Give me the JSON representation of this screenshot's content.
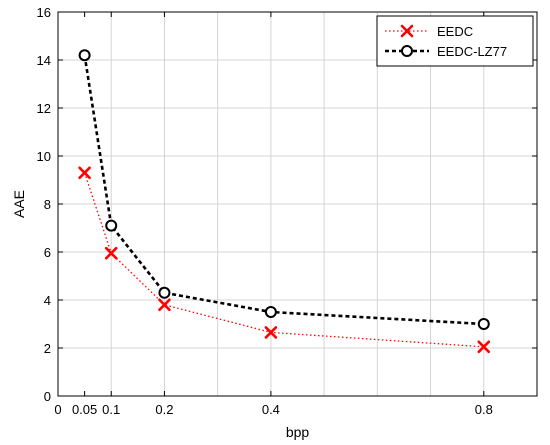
{
  "chart_data": {
    "type": "line",
    "xlabel": "bpp",
    "ylabel": "AAE",
    "xlim": [
      0,
      0.9
    ],
    "ylim": [
      0,
      16
    ],
    "xticks": [
      0,
      0.05,
      0.1,
      0.2,
      0.4,
      0.8
    ],
    "xtick_labels": [
      "0",
      "0.05",
      "0.1",
      "0.2",
      "0.4",
      "0.8"
    ],
    "xgrid": [
      0.1,
      0.2,
      0.3,
      0.4,
      0.5,
      0.6,
      0.7,
      0.8
    ],
    "yticks": [
      0,
      2,
      4,
      6,
      8,
      10,
      12,
      14,
      16
    ],
    "ytick_labels": [
      "0",
      "2",
      "4",
      "6",
      "8",
      "10",
      "12",
      "14",
      "16"
    ],
    "grid": true,
    "legend_position": "top-right",
    "series": [
      {
        "name": "EEDC",
        "color": "#ff0000",
        "line_style": "dotted",
        "marker": "x",
        "x": [
          0.05,
          0.1,
          0.2,
          0.4,
          0.8
        ],
        "y": [
          9.3,
          5.95,
          3.8,
          2.65,
          2.05
        ]
      },
      {
        "name": "EEDC-LZ77",
        "color": "#000000",
        "line_style": "dashed",
        "marker": "circle",
        "x": [
          0.05,
          0.1,
          0.2,
          0.4,
          0.8
        ],
        "y": [
          14.2,
          7.1,
          4.3,
          3.5,
          3.0
        ]
      }
    ]
  }
}
